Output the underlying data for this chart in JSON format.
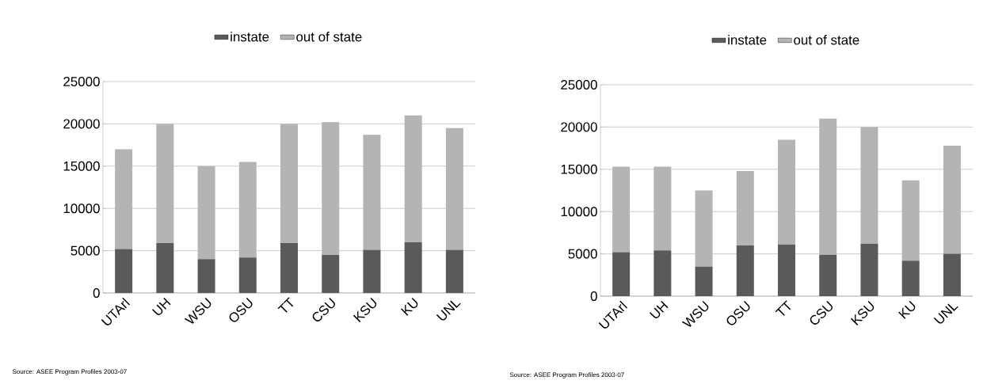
{
  "chart_data": [
    {
      "type": "bar",
      "stacked": true,
      "categories": [
        "UTArl",
        "UH",
        "WSU",
        "OSU",
        "TT",
        "CSU",
        "KSU",
        "KU",
        "UNL"
      ],
      "series": [
        {
          "name": "instate",
          "color": "#5a5a5a",
          "values": [
            5200,
            5900,
            4000,
            4200,
            5900,
            4500,
            5100,
            6000,
            5100
          ]
        },
        {
          "name": "out of state",
          "color": "#b4b4b4",
          "values": [
            11800,
            14100,
            11000,
            11300,
            14100,
            15700,
            13600,
            15000,
            14400
          ]
        }
      ],
      "ylim": [
        0,
        25000
      ],
      "yticks": [
        0,
        5000,
        10000,
        15000,
        20000,
        25000
      ],
      "grid": "y",
      "legend": "top",
      "annotations": [
        "Source: ASEE Program Profiles 2003-07"
      ]
    },
    {
      "type": "bar",
      "stacked": true,
      "categories": [
        "UTArl",
        "UH",
        "WSU",
        "OSU",
        "TT",
        "CSU",
        "KSU",
        "KU",
        "UNL"
      ],
      "series": [
        {
          "name": "instate",
          "color": "#5a5a5a",
          "values": [
            5200,
            5400,
            3500,
            6000,
            6100,
            4900,
            6200,
            4200,
            5000
          ]
        },
        {
          "name": "out of state",
          "color": "#b4b4b4",
          "values": [
            10100,
            9900,
            9000,
            8800,
            12400,
            16100,
            13800,
            9500,
            12800
          ]
        }
      ],
      "ylim": [
        0,
        25000
      ],
      "yticks": [
        0,
        5000,
        10000,
        15000,
        20000,
        25000
      ],
      "grid": "y",
      "legend": "top",
      "annotations": [
        "Source: ASEE Program Profiles 2003-07"
      ]
    }
  ]
}
